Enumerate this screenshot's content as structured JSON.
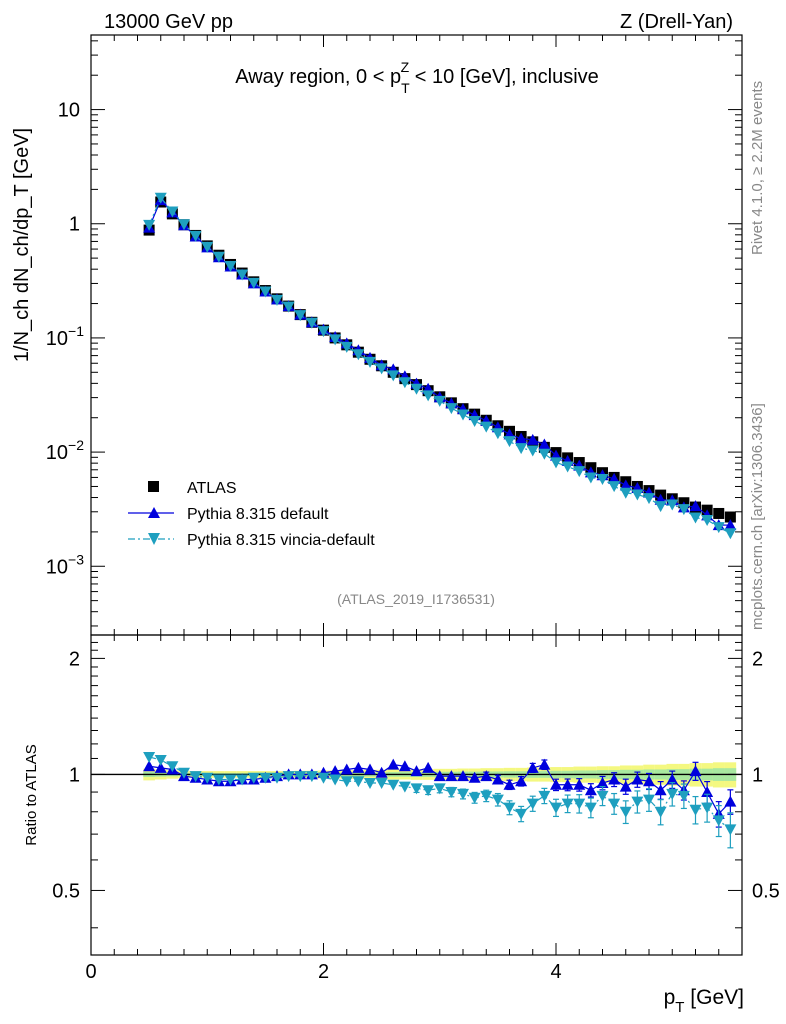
{
  "header": {
    "left": "13000 GeV pp",
    "right": "Z (Drell-Yan)"
  },
  "side_labels": {
    "rivet": "Rivet 4.1.0, ≥ 2.2M events",
    "mcplots": "mcplots.cern.ch [arXiv:1306.3436]"
  },
  "chart_data": {
    "type": "scatter",
    "title": "Away region, 0 < p_T^Z < 10 [GeV], inclusive",
    "title_parts": {
      "pre": "Away region, 0 < p",
      "sub": "T",
      "sup": "Z",
      "post": " < 10 [GeV], inclusive"
    },
    "analysis_id": "(ATLAS_2019_I1736531)",
    "xlabel": "p_T [GeV]",
    "xlabel_parts": {
      "main": "p",
      "sub": "T",
      "post": " [GeV]"
    },
    "ylabel": "1/N_ch dN_ch/dp_T [GeV]",
    "ratio_ylabel": "Ratio to ATLAS",
    "xlim": [
      0,
      5.6
    ],
    "ylim": [
      0.00025,
      45
    ],
    "ratio_ylim": [
      0.34,
      2.3
    ],
    "yscale": "log",
    "x_ticks": [
      0,
      2,
      4
    ],
    "x_tick_labels": [
      "0",
      "2",
      "4"
    ],
    "y_ticks": [
      {
        "value": 10,
        "base": "10",
        "exp": ""
      },
      {
        "value": 1,
        "base": "1",
        "exp": ""
      },
      {
        "value": 0.1,
        "base": "10",
        "exp": "−1"
      },
      {
        "value": 0.01,
        "base": "10",
        "exp": "−2"
      },
      {
        "value": 0.001,
        "base": "10",
        "exp": "−3"
      }
    ],
    "ratio_ticks": [
      {
        "value": 2,
        "label": "2"
      },
      {
        "value": 1,
        "label": "1"
      },
      {
        "value": 0.5,
        "label": "0.5"
      }
    ],
    "legend_position": "lower-left",
    "x": [
      0.5,
      0.6,
      0.7,
      0.8,
      0.9,
      1.0,
      1.1,
      1.2,
      1.3,
      1.4,
      1.5,
      1.6,
      1.7,
      1.8,
      1.9,
      2.0,
      2.1,
      2.2,
      2.3,
      2.4,
      2.5,
      2.6,
      2.7,
      2.8,
      2.9,
      3.0,
      3.1,
      3.2,
      3.3,
      3.4,
      3.5,
      3.6,
      3.7,
      3.8,
      3.9,
      4.0,
      4.1,
      4.2,
      4.3,
      4.4,
      4.5,
      4.6,
      4.7,
      4.8,
      4.9,
      5.0,
      5.1,
      5.2,
      5.3,
      5.4,
      5.5
    ],
    "series": [
      {
        "name": "ATLAS",
        "color": "#000000",
        "marker": "square",
        "values": [
          0.88,
          1.55,
          1.22,
          0.98,
          0.79,
          0.64,
          0.53,
          0.44,
          0.37,
          0.31,
          0.26,
          0.22,
          0.19,
          0.16,
          0.137,
          0.117,
          0.1,
          0.087,
          0.075,
          0.065,
          0.057,
          0.05,
          0.044,
          0.039,
          0.0345,
          0.0305,
          0.027,
          0.024,
          0.0215,
          0.019,
          0.017,
          0.0152,
          0.0137,
          0.0123,
          0.011,
          0.0099,
          0.0089,
          0.0081,
          0.0073,
          0.0066,
          0.006,
          0.0055,
          0.005,
          0.0046,
          0.0042,
          0.0039,
          0.0036,
          0.0033,
          0.0031,
          0.0029,
          0.0027
        ],
        "ratio": [
          1,
          1,
          1,
          1,
          1,
          1,
          1,
          1,
          1,
          1,
          1,
          1,
          1,
          1,
          1,
          1,
          1,
          1,
          1,
          1,
          1,
          1,
          1,
          1,
          1,
          1,
          1,
          1,
          1,
          1,
          1,
          1,
          1,
          1,
          1,
          1,
          1,
          1,
          1,
          1,
          1,
          1,
          1,
          1,
          1,
          1,
          1,
          1,
          1,
          1,
          1
        ],
        "band_total": [
          0.035,
          0.03,
          0.025,
          0.022,
          0.02,
          0.02,
          0.02,
          0.02,
          0.02,
          0.02,
          0.02,
          0.02,
          0.02,
          0.022,
          0.022,
          0.024,
          0.024,
          0.026,
          0.026,
          0.028,
          0.028,
          0.03,
          0.03,
          0.032,
          0.032,
          0.034,
          0.034,
          0.036,
          0.036,
          0.038,
          0.038,
          0.04,
          0.04,
          0.042,
          0.042,
          0.045,
          0.045,
          0.048,
          0.048,
          0.05,
          0.05,
          0.055,
          0.055,
          0.06,
          0.06,
          0.065,
          0.065,
          0.07,
          0.07,
          0.075,
          0.075
        ],
        "band_stat": [
          0.015,
          0.013,
          0.011,
          0.01,
          0.009,
          0.009,
          0.009,
          0.009,
          0.009,
          0.009,
          0.009,
          0.009,
          0.009,
          0.01,
          0.01,
          0.011,
          0.011,
          0.012,
          0.012,
          0.013,
          0.013,
          0.014,
          0.014,
          0.015,
          0.015,
          0.016,
          0.016,
          0.017,
          0.017,
          0.018,
          0.018,
          0.019,
          0.019,
          0.02,
          0.02,
          0.022,
          0.022,
          0.024,
          0.024,
          0.026,
          0.026,
          0.028,
          0.028,
          0.03,
          0.03,
          0.032,
          0.032,
          0.035,
          0.035,
          0.038,
          0.038
        ]
      },
      {
        "name": "Pythia 8.315 default",
        "color": "#0000dd",
        "marker": "triangle-up",
        "line": "solid",
        "ratio": [
          1.05,
          1.04,
          1.03,
          0.99,
          0.98,
          0.97,
          0.96,
          0.96,
          0.97,
          0.97,
          0.98,
          0.99,
          1.0,
          1.0,
          1.0,
          1.01,
          1.02,
          1.03,
          1.04,
          1.03,
          1.01,
          1.06,
          1.05,
          1.02,
          1.04,
          0.99,
          0.99,
          0.99,
          0.98,
          0.99,
          0.97,
          0.94,
          0.96,
          1.04,
          1.06,
          0.94,
          0.94,
          0.94,
          0.91,
          0.95,
          0.97,
          0.93,
          0.97,
          0.96,
          0.91,
          0.97,
          0.91,
          1.02,
          0.9,
          0.79,
          0.85
        ],
        "ratio_err": [
          0.01,
          0.01,
          0.01,
          0.01,
          0.01,
          0.01,
          0.01,
          0.01,
          0.01,
          0.01,
          0.01,
          0.01,
          0.01,
          0.01,
          0.012,
          0.012,
          0.013,
          0.014,
          0.015,
          0.015,
          0.016,
          0.017,
          0.018,
          0.019,
          0.02,
          0.02,
          0.021,
          0.022,
          0.023,
          0.024,
          0.025,
          0.026,
          0.027,
          0.028,
          0.03,
          0.032,
          0.033,
          0.035,
          0.036,
          0.038,
          0.04,
          0.042,
          0.044,
          0.046,
          0.048,
          0.05,
          0.052,
          0.055,
          0.058,
          0.06,
          0.062
        ]
      },
      {
        "name": "Pythia 8.315 vincia-default",
        "color": "#1e9fbf",
        "marker": "triangle-down",
        "line": "dashdot",
        "ratio": [
          1.11,
          1.09,
          1.05,
          1.01,
          0.99,
          0.98,
          0.97,
          0.97,
          0.97,
          0.98,
          0.98,
          0.98,
          0.99,
          0.99,
          0.99,
          0.98,
          0.97,
          0.96,
          0.96,
          0.95,
          0.95,
          0.94,
          0.93,
          0.92,
          0.91,
          0.92,
          0.9,
          0.89,
          0.87,
          0.88,
          0.86,
          0.82,
          0.79,
          0.84,
          0.88,
          0.82,
          0.84,
          0.84,
          0.82,
          0.88,
          0.84,
          0.8,
          0.85,
          0.86,
          0.8,
          0.89,
          0.88,
          0.81,
          0.82,
          0.76,
          0.72
        ],
        "ratio_err": [
          0.01,
          0.01,
          0.01,
          0.01,
          0.01,
          0.01,
          0.01,
          0.01,
          0.01,
          0.01,
          0.01,
          0.01,
          0.012,
          0.012,
          0.013,
          0.014,
          0.015,
          0.016,
          0.017,
          0.018,
          0.019,
          0.02,
          0.021,
          0.022,
          0.023,
          0.024,
          0.025,
          0.026,
          0.028,
          0.03,
          0.032,
          0.034,
          0.036,
          0.038,
          0.04,
          0.042,
          0.044,
          0.046,
          0.048,
          0.05,
          0.052,
          0.054,
          0.056,
          0.058,
          0.06,
          0.062,
          0.064,
          0.066,
          0.068,
          0.07,
          0.075
        ]
      }
    ]
  }
}
